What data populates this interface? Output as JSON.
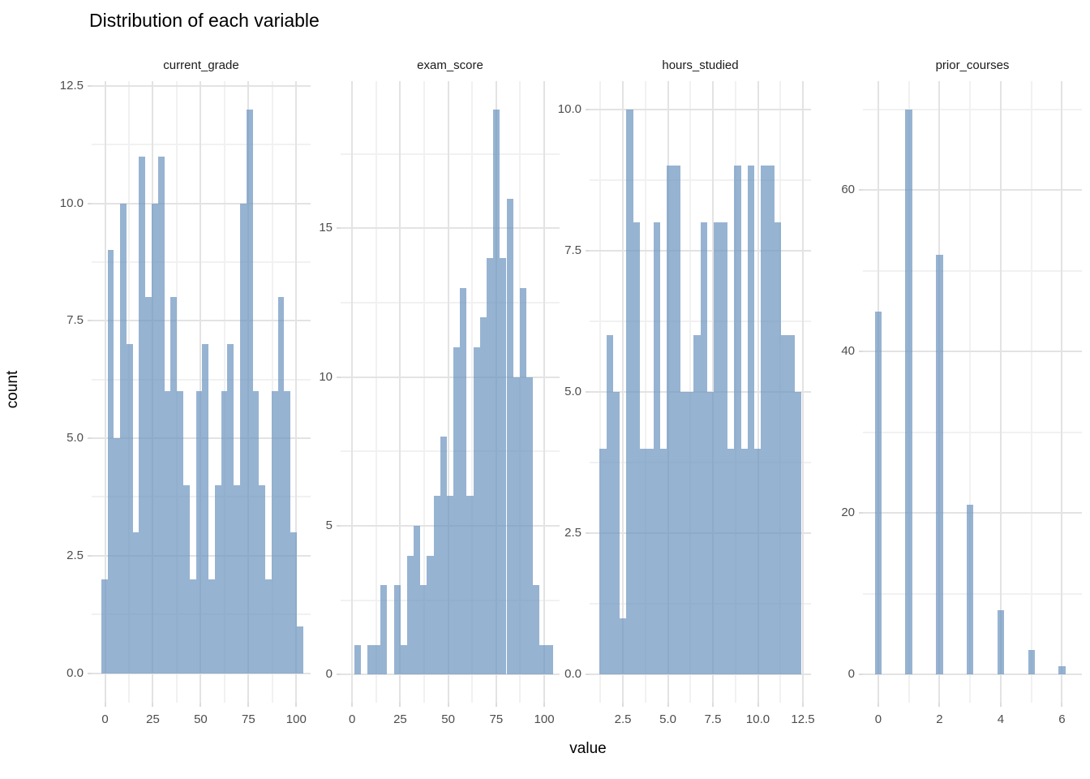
{
  "title": "Distribution of each variable",
  "axis_titles": {
    "y": "count",
    "x": "value"
  },
  "colors": {
    "background": "#ffffff",
    "bar_fill_rgba": "rgba(111,149,192,0.72)",
    "grid_major": "#e3e3e3",
    "grid_minor": "#f1f1f1",
    "tick_text": "#4d4d4d",
    "title_text": "#000000",
    "facet_text": "#1a1a1a"
  },
  "chart_data": [
    {
      "type": "bar",
      "subtype": "histogram",
      "facet": "current_grade",
      "bin_start": -2.0,
      "bin_width": 3.3,
      "values": [
        2,
        9,
        5,
        10,
        7,
        3,
        11,
        8,
        10,
        11,
        6,
        8,
        6,
        4,
        2,
        6,
        7,
        2,
        4,
        6,
        7,
        4,
        10,
        12,
        6,
        4,
        2,
        6,
        8,
        6,
        3,
        1
      ],
      "x": {
        "min": -7,
        "max": 107.5,
        "major": [
          0,
          25,
          50,
          75,
          100
        ],
        "minor": [
          12.5,
          37.5,
          62.5,
          87.5
        ],
        "labels": [
          "0",
          "25",
          "50",
          "75",
          "100"
        ]
      },
      "y": {
        "min": -0.63,
        "max": 12.6,
        "major": [
          0,
          2.5,
          5,
          7.5,
          10,
          12.5
        ],
        "minor": [
          1.25,
          3.75,
          6.25,
          8.75,
          11.25
        ],
        "labels": [
          "0.0",
          "2.5",
          "5.0",
          "7.5",
          "10.0",
          "12.5"
        ]
      }
    },
    {
      "type": "bar",
      "subtype": "histogram",
      "facet": "exam_score",
      "bin_start": 1.0,
      "bin_width": 3.45,
      "values": [
        1,
        0,
        1,
        1,
        3,
        0,
        3,
        1,
        4,
        5,
        3,
        4,
        6,
        8,
        6,
        11,
        13,
        6,
        11,
        12,
        14,
        19,
        14,
        16,
        10,
        13,
        10,
        3,
        1,
        1
      ],
      "x": {
        "min": -6,
        "max": 108,
        "major": [
          0,
          25,
          50,
          75,
          100
        ],
        "minor": [
          12.5,
          37.5,
          62.5,
          87.5
        ],
        "labels": [
          "0",
          "25",
          "50",
          "75",
          "100"
        ]
      },
      "y": {
        "min": -0.95,
        "max": 19.95,
        "major": [
          0,
          5,
          10,
          15
        ],
        "minor": [
          2.5,
          7.5,
          12.5,
          17.5
        ],
        "labels": [
          "0",
          "5",
          "10",
          "15"
        ]
      }
    },
    {
      "type": "bar",
      "subtype": "histogram",
      "facet": "hours_studied",
      "bin_start": 1.2,
      "bin_width": 0.374,
      "values": [
        4,
        6,
        5,
        1,
        10,
        8,
        4,
        4,
        8,
        4,
        9,
        9,
        5,
        5,
        6,
        8,
        5,
        8,
        8,
        4,
        9,
        4,
        9,
        4,
        9,
        9,
        8,
        6,
        6,
        5
      ],
      "x": {
        "min": 0.65,
        "max": 12.95,
        "major": [
          2.5,
          5,
          7.5,
          10,
          12.5
        ],
        "minor": [
          1.25,
          3.75,
          6.25,
          8.75,
          11.25
        ],
        "labels": [
          "2.5",
          "5.0",
          "7.5",
          "10.0",
          "12.5"
        ]
      },
      "y": {
        "min": -0.5,
        "max": 10.5,
        "major": [
          0,
          2.5,
          5,
          7.5,
          10
        ],
        "minor": [
          1.25,
          3.75,
          6.25,
          8.75
        ],
        "labels": [
          "0.0",
          "2.5",
          "5.0",
          "7.5",
          "10.0"
        ]
      }
    },
    {
      "type": "bar",
      "subtype": "histogram",
      "facet": "prior_courses",
      "centers": [
        0,
        1,
        2,
        3,
        4,
        5,
        6
      ],
      "bar_width": 0.22,
      "values": [
        45,
        70,
        52,
        21,
        8,
        3,
        1
      ],
      "x": {
        "min": -0.5,
        "max": 6.65,
        "major": [
          0,
          2,
          4,
          6
        ],
        "minor": [
          1,
          3,
          5
        ],
        "labels": [
          "0",
          "2",
          "4",
          "6"
        ]
      },
      "y": {
        "min": -3.5,
        "max": 73.5,
        "major": [
          0,
          20,
          40,
          60
        ],
        "minor": [
          10,
          30,
          50,
          70
        ],
        "labels": [
          "0",
          "20",
          "40",
          "60"
        ]
      }
    }
  ]
}
